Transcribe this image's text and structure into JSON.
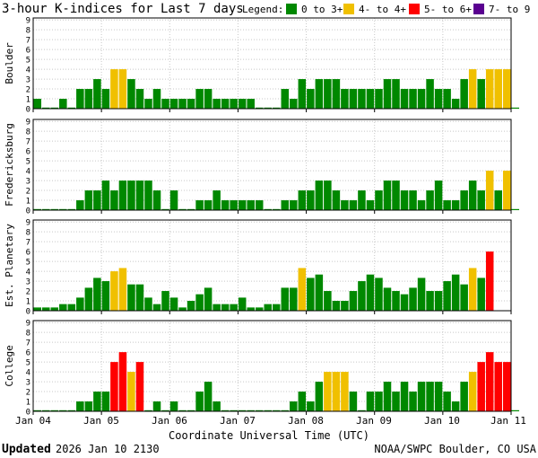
{
  "chart_data": {
    "type": "bar",
    "title": "3-hour K-indices for Last 7 days",
    "legend": {
      "label": "Legend:",
      "position": "top-right",
      "items": [
        {
          "label": "0 to 3+",
          "color": "#008800"
        },
        {
          "label": "4- to 4+",
          "color": "#f0c000"
        },
        {
          "label": "5- to 6+",
          "color": "#ff0000"
        },
        {
          "label": "7- to 9",
          "color": "#5a0090"
        }
      ]
    },
    "xlabel": "Coordinate Universal Time (UTC)",
    "x_tick_labels": [
      "Jan 04",
      "Jan 05",
      "Jan 06",
      "Jan 07",
      "Jan 08",
      "Jan 09",
      "Jan 10",
      "Jan 11"
    ],
    "y_ticks": [
      "0",
      "1",
      "2",
      "3",
      "4",
      "5",
      "6",
      "7",
      "8",
      "9"
    ],
    "ylim": [
      0,
      9
    ],
    "grid": true,
    "bins_per_day": 8,
    "panels": [
      {
        "name": "Boulder",
        "values": [
          1,
          0,
          0,
          1,
          0,
          2,
          2,
          3,
          2,
          4,
          4,
          3,
          2,
          1,
          2,
          1,
          1,
          1,
          1,
          2,
          2,
          1,
          1,
          1,
          1,
          1,
          0,
          0,
          0,
          2,
          1,
          3,
          2,
          3,
          3,
          3,
          2,
          2,
          2,
          2,
          2,
          3,
          3,
          2,
          2,
          2,
          3,
          2,
          2,
          1,
          3,
          4,
          3,
          4,
          4,
          4,
          0
        ]
      },
      {
        "name": "Fredericksburg",
        "values": [
          0,
          0,
          0,
          0,
          0,
          1,
          2,
          2,
          3,
          2,
          3,
          3,
          3,
          3,
          2,
          0,
          2,
          0,
          0,
          1,
          1,
          2,
          1,
          1,
          1,
          1,
          1,
          0,
          0,
          1,
          1,
          2,
          2,
          3,
          3,
          2,
          1,
          1,
          2,
          1,
          2,
          3,
          3,
          2,
          2,
          1,
          2,
          3,
          1,
          1,
          2,
          3,
          2,
          4,
          2,
          4,
          0
        ]
      },
      {
        "name": "Est. Planetary",
        "values": [
          0.33,
          0.33,
          0.33,
          0.67,
          0.67,
          1.33,
          2.33,
          3.33,
          3,
          4,
          4.33,
          2.67,
          2.67,
          1.33,
          0.67,
          2,
          1.33,
          0.33,
          1,
          1.67,
          2.33,
          0.67,
          0.67,
          0.67,
          1.33,
          0.33,
          0.33,
          0.67,
          0.67,
          2.33,
          2.33,
          4.33,
          3.33,
          3.67,
          2,
          1,
          1,
          2,
          3,
          3.67,
          3.33,
          2.33,
          2,
          1.67,
          2.33,
          3.33,
          2,
          2,
          3,
          3.67,
          2.67,
          4.33,
          3.33,
          6
        ]
      },
      {
        "name": "College",
        "values": [
          0,
          0,
          0,
          0,
          0,
          1,
          1,
          2,
          2,
          5,
          6,
          4,
          5,
          0,
          1,
          0,
          1,
          0,
          0,
          2,
          3,
          1,
          0,
          0,
          0,
          0,
          0,
          0,
          0,
          0,
          1,
          2,
          1,
          3,
          4,
          4,
          4,
          2,
          0,
          2,
          2,
          3,
          2,
          3,
          2,
          3,
          3,
          3,
          2,
          1,
          3,
          4,
          5,
          6,
          5,
          5,
          0
        ]
      }
    ]
  },
  "footer": {
    "updated_label": "Updated",
    "updated_value": "2026 Jan 10 2130",
    "source": "NOAA/SWPC Boulder, CO USA"
  }
}
